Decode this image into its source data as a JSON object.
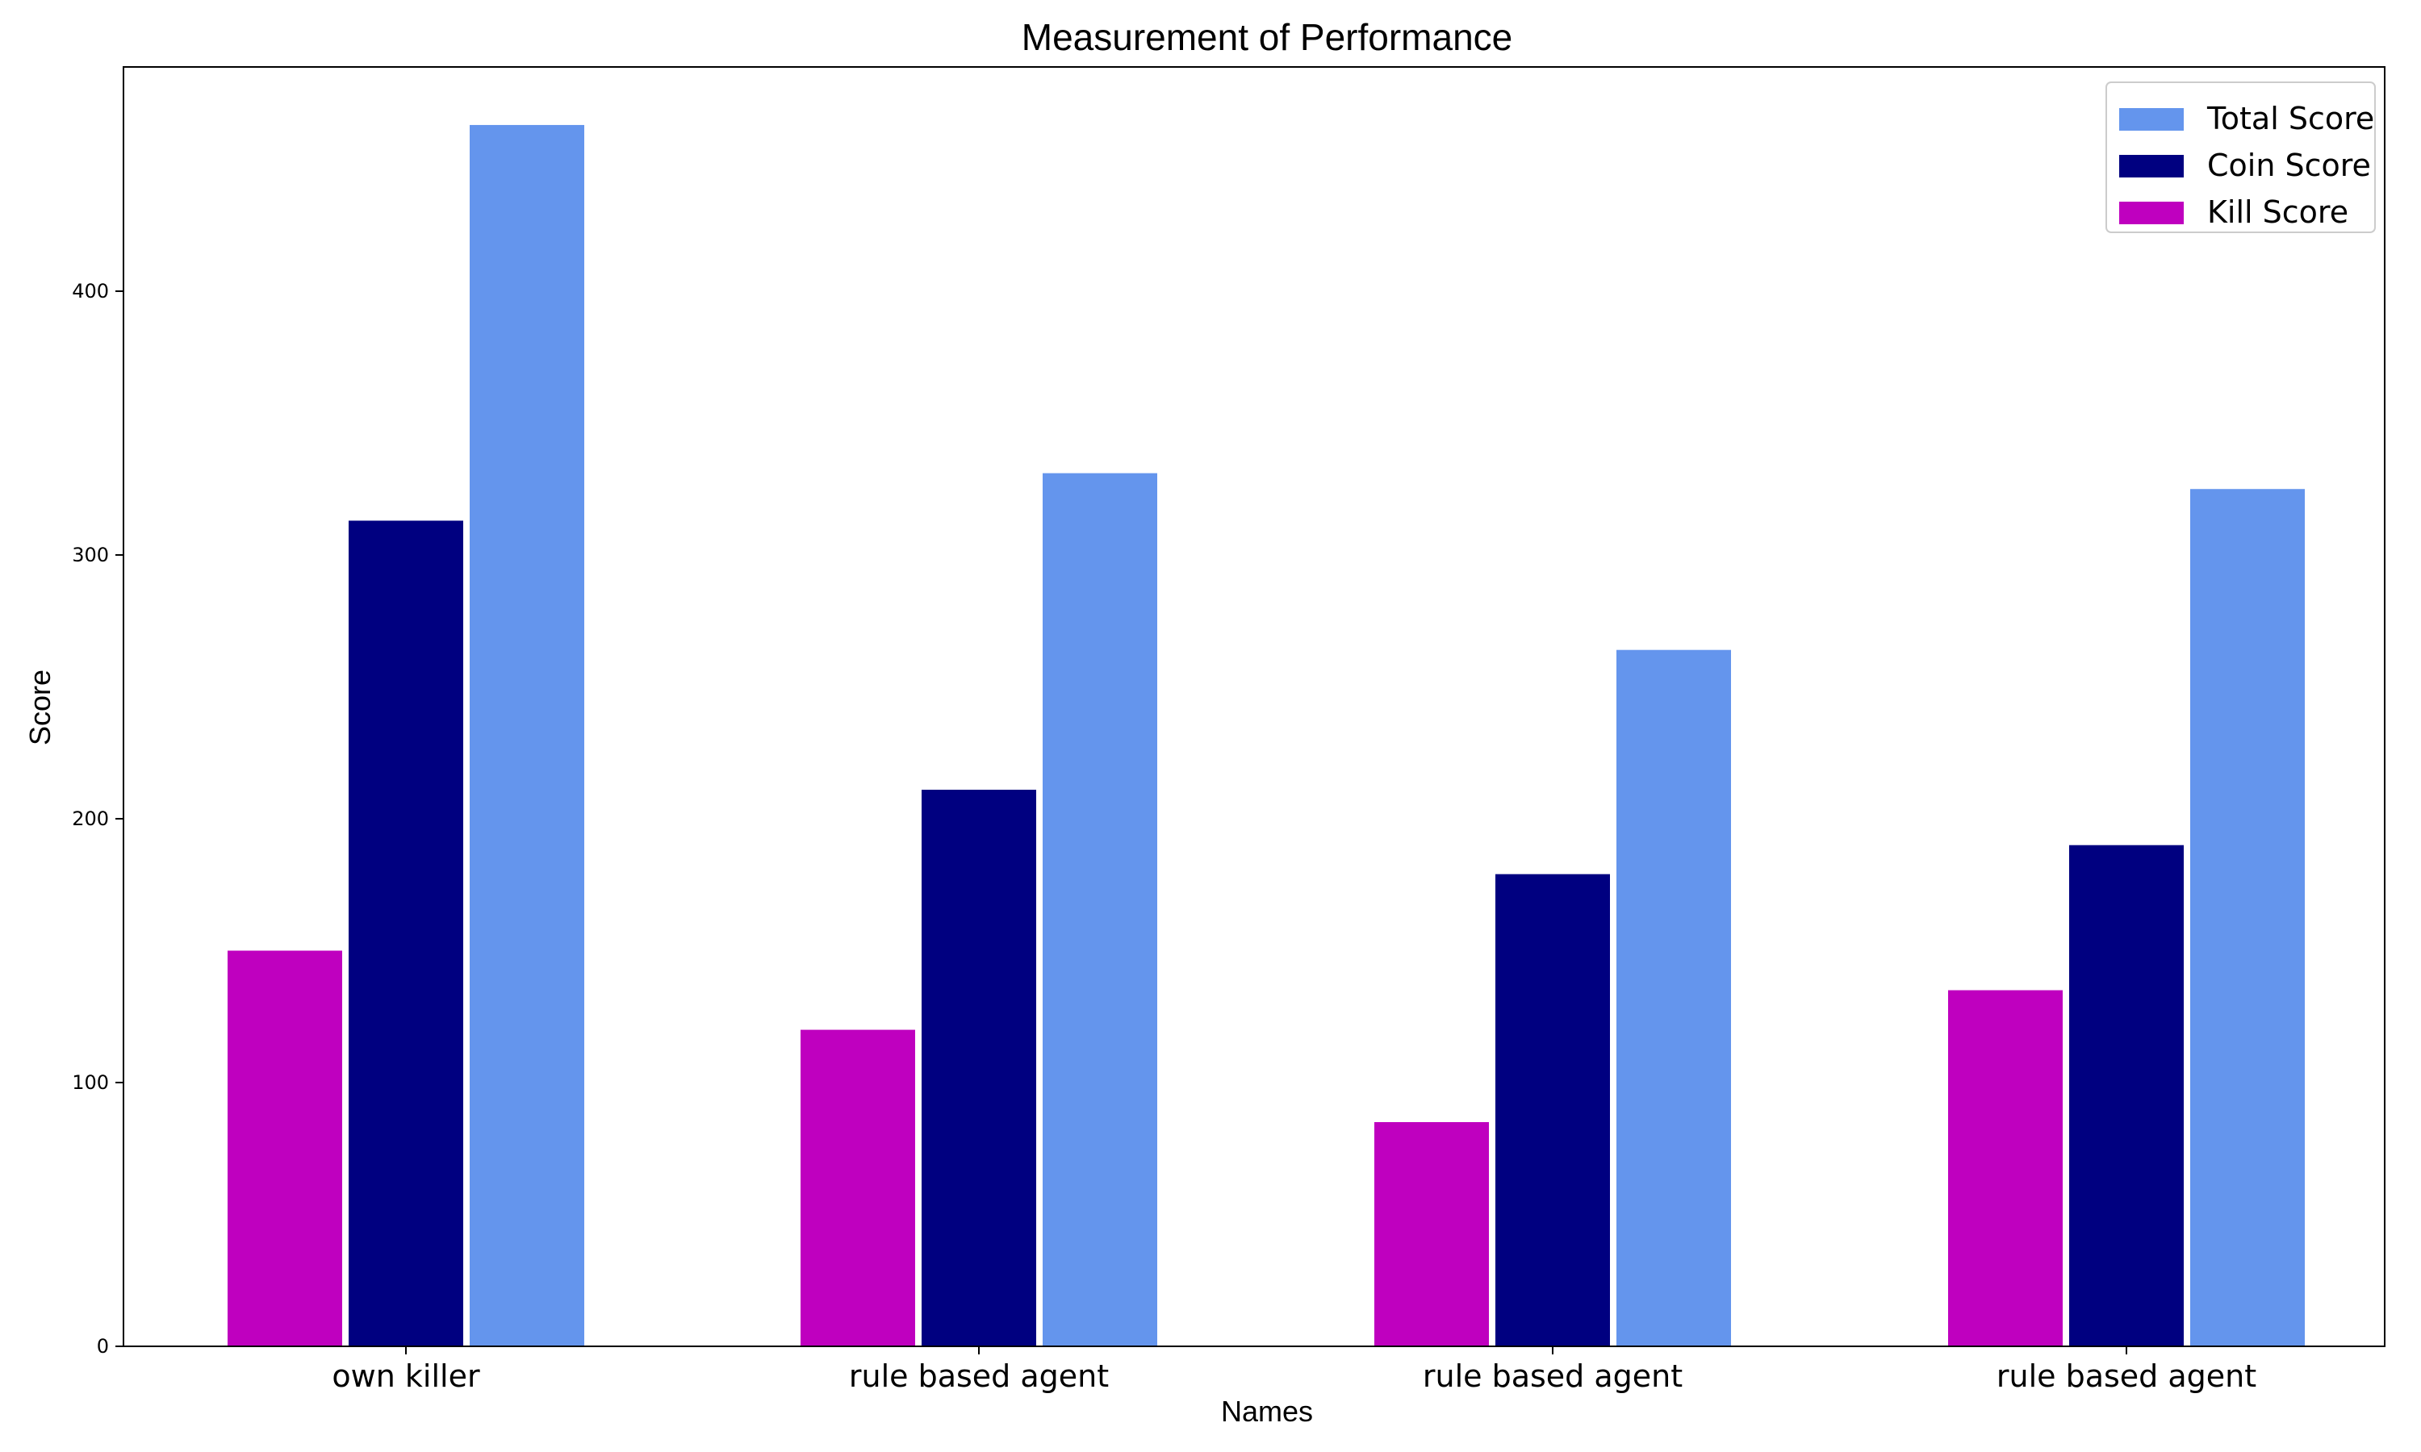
{
  "chart_data": {
    "type": "bar",
    "title": "Measurement of Performance",
    "xlabel": "Names",
    "ylabel": "Score",
    "categories": [
      "own killer",
      "rule based agent",
      "rule based agent",
      "rule based agent"
    ],
    "series": [
      {
        "name": "Kill Score",
        "color": "#bf00bf",
        "values": [
          150,
          120,
          85,
          135
        ]
      },
      {
        "name": "Coin Score",
        "color": "#000080",
        "values": [
          313,
          211,
          179,
          190
        ]
      },
      {
        "name": "Total Score",
        "color": "#6495ed",
        "values": [
          463,
          331,
          264,
          325
        ]
      }
    ],
    "legend_order": [
      "Total Score",
      "Coin Score",
      "Kill Score"
    ],
    "yticks": [
      0,
      100,
      200,
      300,
      400
    ],
    "ylim": [
      0,
      485
    ],
    "grid": false,
    "legend_position": "top-right"
  }
}
